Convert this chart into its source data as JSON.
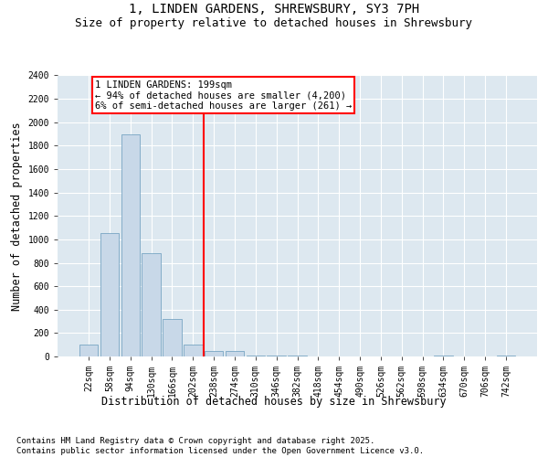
{
  "title_line1": "1, LINDEN GARDENS, SHREWSBURY, SY3 7PH",
  "title_line2": "Size of property relative to detached houses in Shrewsbury",
  "xlabel": "Distribution of detached houses by size in Shrewsbury",
  "ylabel": "Number of detached properties",
  "categories": [
    "22sqm",
    "58sqm",
    "94sqm",
    "130sqm",
    "166sqm",
    "202sqm",
    "238sqm",
    "274sqm",
    "310sqm",
    "346sqm",
    "382sqm",
    "418sqm",
    "454sqm",
    "490sqm",
    "526sqm",
    "562sqm",
    "598sqm",
    "634sqm",
    "670sqm",
    "706sqm",
    "742sqm"
  ],
  "values": [
    100,
    1050,
    1900,
    880,
    320,
    100,
    50,
    45,
    10,
    8,
    8,
    0,
    0,
    0,
    0,
    0,
    0,
    5,
    0,
    0,
    5
  ],
  "bar_color": "#c8d8e8",
  "bar_edge_color": "#6699bb",
  "vline_x": 5.5,
  "vline_color": "red",
  "annotation_text": "1 LINDEN GARDENS: 199sqm\n← 94% of detached houses are smaller (4,200)\n6% of semi-detached houses are larger (261) →",
  "annotation_box_color": "red",
  "annotation_text_color": "black",
  "ylim": [
    0,
    2400
  ],
  "yticks": [
    0,
    200,
    400,
    600,
    800,
    1000,
    1200,
    1400,
    1600,
    1800,
    2000,
    2200,
    2400
  ],
  "background_color": "#dde8f0",
  "footer_text": "Contains HM Land Registry data © Crown copyright and database right 2025.\nContains public sector information licensed under the Open Government Licence v3.0.",
  "title_fontsize": 10,
  "subtitle_fontsize": 9,
  "axis_label_fontsize": 8.5,
  "tick_fontsize": 7,
  "footer_fontsize": 6.5,
  "annotation_fontsize": 7.5
}
